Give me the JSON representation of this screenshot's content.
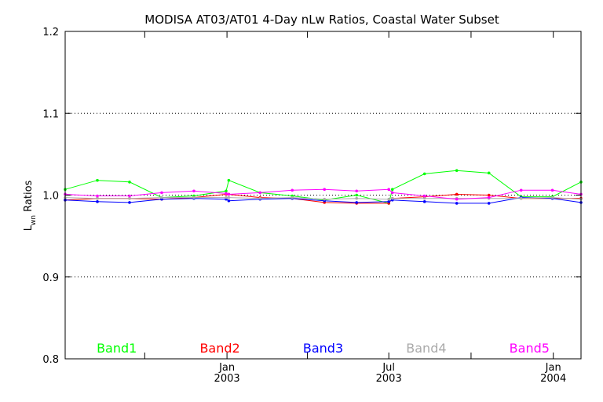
{
  "chart_data": {
    "type": "line",
    "title": "MODISA AT03/AT01 4-Day nLw Ratios, Coastal Water Subset",
    "ylabel": "L",
    "ylabel_sub": "wn",
    "ylabel_rest": " Ratios",
    "xlabel": "",
    "ylim": [
      0.8,
      1.2
    ],
    "xlim": [
      "2002-07-04",
      "2004-02-01"
    ],
    "yticks": [
      {
        "v": 0.8,
        "label": "0.8"
      },
      {
        "v": 0.9,
        "label": "0.9"
      },
      {
        "v": 1.0,
        "label": "1.0"
      },
      {
        "v": 1.1,
        "label": "1.1"
      },
      {
        "v": 1.2,
        "label": "1.2"
      }
    ],
    "ygrid": [
      0.9,
      1.0,
      1.1
    ],
    "reference_line": 1.0,
    "xticks": [
      {
        "date": "2002-10-01",
        "month": "",
        "year": ""
      },
      {
        "date": "2003-01-01",
        "month": "Jan",
        "year": "2003"
      },
      {
        "date": "2003-04-01",
        "month": "",
        "year": ""
      },
      {
        "date": "2003-07-01",
        "month": "Jul",
        "year": "2003"
      },
      {
        "date": "2003-10-01",
        "month": "",
        "year": ""
      },
      {
        "date": "2004-01-01",
        "month": "Jan",
        "year": "2004"
      }
    ],
    "x": [
      "2002-07-04",
      "2002-08-09",
      "2002-09-14",
      "2002-10-20",
      "2002-11-25",
      "2002-12-31",
      "2003-01-03",
      "2003-02-07",
      "2003-03-15",
      "2003-04-20",
      "2003-05-26",
      "2003-07-01",
      "2003-07-05",
      "2003-08-10",
      "2003-09-15",
      "2003-10-21",
      "2003-11-26",
      "2003-12-31",
      "2004-02-01"
    ],
    "series": [
      {
        "name": "Band1",
        "color": "#00ff00",
        "values": [
          1.007,
          1.018,
          1.016,
          0.997,
          0.999,
          1.005,
          1.018,
          1.003,
          0.999,
          0.994,
          1.0,
          0.99,
          1.007,
          1.026,
          1.03,
          1.027,
          0.998,
          0.998,
          1.016
        ]
      },
      {
        "name": "Band2",
        "color": "#ff0000",
        "values": [
          0.994,
          0.996,
          0.996,
          0.995,
          0.997,
          1.001,
          1.001,
          0.997,
          0.996,
          0.991,
          0.99,
          0.99,
          0.996,
          0.998,
          1.001,
          1.0,
          0.996,
          0.996,
          0.996
        ]
      },
      {
        "name": "Band3",
        "color": "#0000ff",
        "values": [
          0.994,
          0.992,
          0.991,
          0.995,
          0.996,
          0.995,
          0.993,
          0.995,
          0.996,
          0.993,
          0.991,
          0.992,
          0.994,
          0.992,
          0.99,
          0.99,
          0.997,
          0.996,
          0.991
        ]
      },
      {
        "name": "Band4",
        "color": "#aaaaaa",
        "values": [
          0.997,
          0.996,
          0.996,
          0.997,
          0.997,
          0.997,
          0.997,
          0.996,
          0.997,
          0.995,
          0.996,
          0.995,
          0.996,
          0.996,
          0.996,
          0.996,
          0.996,
          0.997,
          0.995
        ]
      },
      {
        "name": "Band5",
        "color": "#ff00ff",
        "values": [
          1.001,
          0.999,
          0.999,
          1.003,
          1.005,
          1.002,
          1.001,
          1.003,
          1.006,
          1.007,
          1.005,
          1.007,
          1.003,
          0.999,
          0.995,
          0.997,
          1.006,
          1.006,
          1.001
        ]
      }
    ]
  }
}
